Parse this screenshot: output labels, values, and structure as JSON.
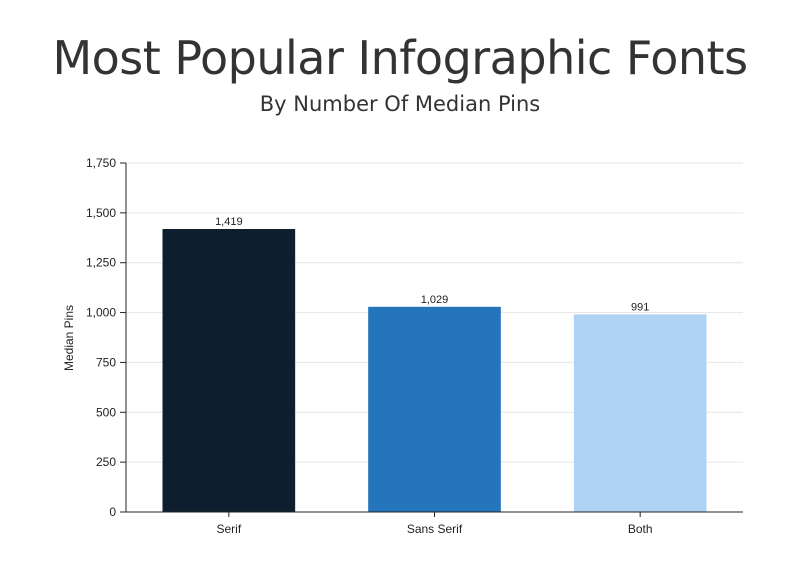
{
  "chart_data": {
    "type": "bar",
    "title": "Most Popular Infographic Fonts",
    "subtitle": "By Number Of Median Pins",
    "xlabel": "",
    "ylabel": "Median Pins",
    "categories": [
      "Serif",
      "Sans Serif",
      "Both"
    ],
    "values": [
      1419,
      1029,
      991
    ],
    "value_labels": [
      "1,419",
      "1,029",
      "991"
    ],
    "bar_colors": [
      "#0d1f2e",
      "#2575bc",
      "#aed3f5"
    ],
    "ylim": [
      0,
      1750
    ],
    "yticks": [
      0,
      250,
      500,
      750,
      1000,
      1250,
      1500,
      1750
    ],
    "ytick_labels": [
      "0",
      "250",
      "500",
      "750",
      "1,000",
      "1,250",
      "1,500",
      "1,750"
    ],
    "grid": true,
    "legend": "none"
  }
}
